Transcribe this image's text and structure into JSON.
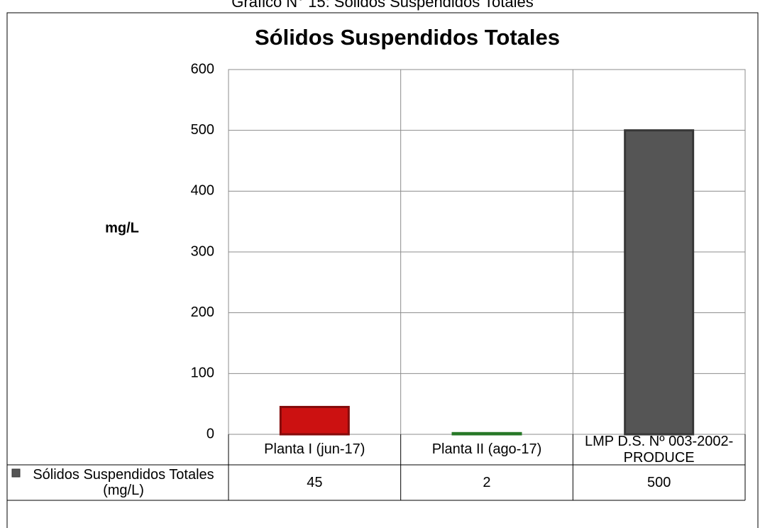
{
  "chart_data": {
    "type": "bar",
    "caption": "Gráfico N° 15: Sólidos Suspendidos Totales",
    "title": "Sólidos Suspendidos Totales",
    "ylabel": "mg/L",
    "categories": [
      "Planta I (jun-17)",
      "Planta II (ago-17)",
      "LMP D.S. Nº 003-2002-PRODUCE"
    ],
    "series": [
      {
        "name": "Sólidos Suspendidos Totales  (mg/L)",
        "colors": [
          "#cc1111",
          "#3cb83c",
          "#555555"
        ],
        "values": [
          45,
          2,
          500
        ]
      }
    ],
    "ylim": [
      0,
      600
    ],
    "yticks": [
      0,
      100,
      200,
      300,
      400,
      500,
      600
    ],
    "grid": true,
    "data_table": true
  }
}
